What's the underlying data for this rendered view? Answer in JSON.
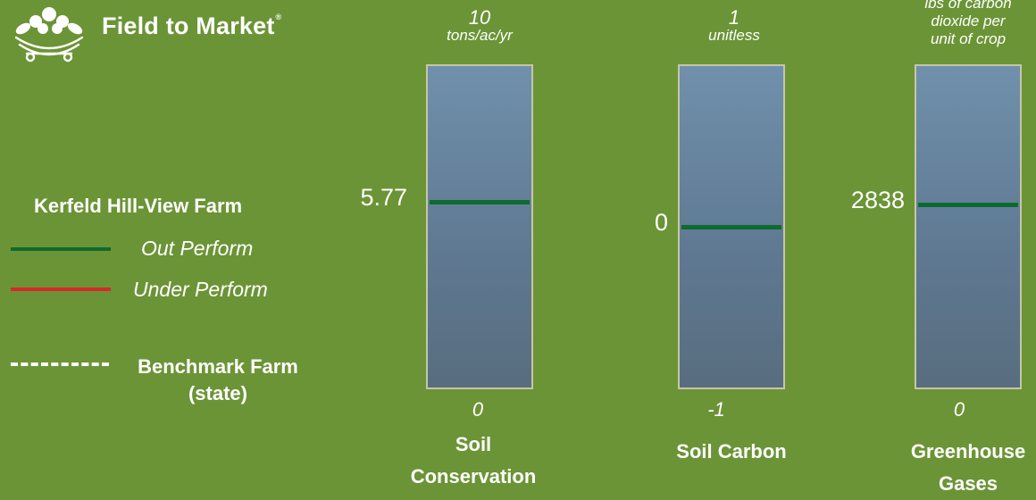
{
  "brand": {
    "name": "Field to Market",
    "registered_mark": "®"
  },
  "legend": {
    "title": "Kerfeld Hill-View Farm",
    "items": [
      {
        "label": "Out Perform",
        "color": "#0d6b2f"
      },
      {
        "label": "Under Perform",
        "color": "#d7282a"
      }
    ],
    "benchmark_line1": "Benchmark Farm",
    "benchmark_line2": "(state)"
  },
  "chart_data": [
    {
      "type": "bar",
      "title": "Soil Conservation",
      "title_line1": "Soil",
      "title_line2": "Conservation",
      "max_label": "10",
      "unit_line1": "tons/ac/yr",
      "unit_line2": "",
      "unit_line3": "",
      "min_label": "0",
      "ylim": [
        0,
        10
      ],
      "value": 5.77,
      "value_label": "5.77",
      "marker_color": "#0d6b2f"
    },
    {
      "type": "bar",
      "title": "Soil Carbon",
      "title_line1": "Soil Carbon",
      "title_line2": "",
      "max_label": "1",
      "unit_line1": "unitless",
      "unit_line2": "",
      "unit_line3": "",
      "min_label": "-1",
      "ylim": [
        -1,
        1
      ],
      "value": 0,
      "value_label": "0",
      "marker_color": "#0d6b2f"
    },
    {
      "type": "bar",
      "title": "Greenhouse Gases",
      "title_line1": "Greenhouse",
      "title_line2": "Gases",
      "max_label": "",
      "unit_line1": "lbs of carbon",
      "unit_line2": "dioxide per",
      "unit_line3": "unit of crop",
      "min_label": "0",
      "ylim": [
        0,
        5000
      ],
      "value": 2838,
      "value_label": "2838",
      "marker_color": "#0d6b2f"
    }
  ]
}
